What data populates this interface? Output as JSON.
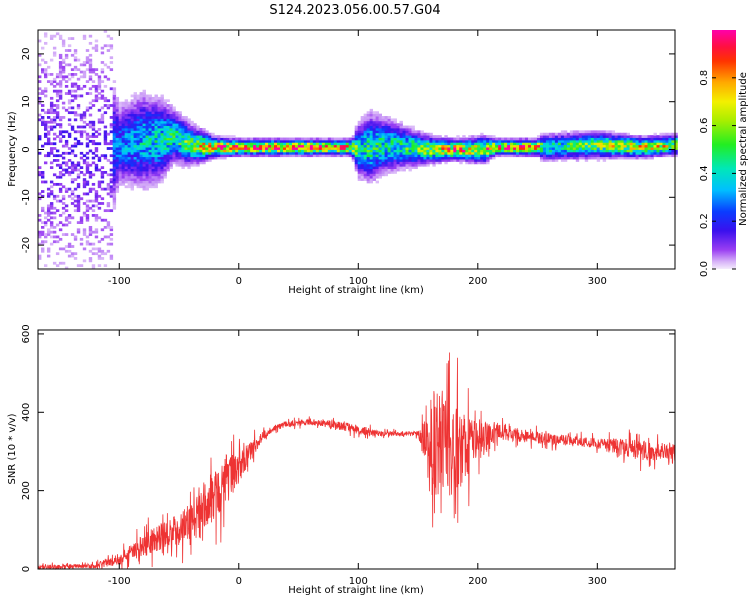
{
  "title": "S124.2023.056.00.57.G04",
  "chart_data": [
    {
      "type": "heatmap",
      "xlabel": "Height of straight line (km)",
      "ylabel": "Frequency (Hz)",
      "xlim": [
        -168,
        365
      ],
      "ylim": [
        -25,
        25
      ],
      "x_ticks": [
        -100,
        0,
        100,
        200,
        300
      ],
      "y_ticks": [
        -20,
        -10,
        0,
        10,
        20
      ],
      "colorbar": {
        "label": "Normalized spectral amplitude",
        "range": [
          0,
          1
        ],
        "ticks": [
          0.0,
          0.2,
          0.4,
          0.6,
          0.8
        ],
        "colormap": "rainbow (magenta-blue-cyan-green-yellow-red)"
      },
      "ridge": {
        "x": [
          -168,
          -125,
          -100,
          -80,
          -65,
          -55,
          -40,
          -20,
          0,
          50,
          95,
          100,
          110,
          125,
          140,
          160,
          180,
          205,
          215,
          250,
          255,
          300,
          340,
          365
        ],
        "center_freq": [
          0,
          0,
          1,
          2,
          2,
          3,
          1,
          0.5,
          0.5,
          0.5,
          0.5,
          0,
          0.5,
          1,
          0.5,
          0,
          0,
          0,
          0.5,
          0.5,
          0.5,
          1,
          0.5,
          1
        ],
        "amplitude": [
          0.05,
          0.2,
          0.3,
          0.4,
          0.45,
          0.5,
          0.6,
          0.9,
          0.95,
          0.95,
          0.8,
          0.45,
          0.5,
          0.45,
          0.5,
          0.7,
          0.9,
          0.75,
          0.9,
          0.9,
          0.45,
          0.6,
          0.8,
          0.7
        ],
        "spread_hz": [
          25,
          25,
          6,
          7,
          6,
          4,
          3,
          1.5,
          1.2,
          1.2,
          1.2,
          4,
          5,
          4,
          3,
          2,
          1.5,
          2,
          1.2,
          1.2,
          2,
          2,
          1.5,
          1.5
        ]
      }
    },
    {
      "type": "line",
      "xlabel": "Height of straight line (km)",
      "ylabel": "SNR (10 * v/v)",
      "xlim": [
        -168,
        365
      ],
      "ylim": [
        0,
        610
      ],
      "x_ticks": [
        -100,
        0,
        100,
        200,
        300
      ],
      "y_ticks": [
        0,
        200,
        400,
        600
      ],
      "color": "#ee3333",
      "envelope": {
        "x": [
          -168,
          -120,
          -100,
          -80,
          -60,
          -40,
          -30,
          -20,
          -10,
          0,
          10,
          20,
          30,
          40,
          60,
          80,
          100,
          120,
          150,
          155,
          160,
          170,
          180,
          190,
          200,
          220,
          250,
          300,
          320,
          340,
          365
        ],
        "mean": [
          5,
          8,
          25,
          60,
          90,
          120,
          160,
          190,
          230,
          260,
          300,
          340,
          360,
          370,
          375,
          370,
          355,
          345,
          345,
          330,
          320,
          310,
          300,
          320,
          330,
          350,
          335,
          320,
          310,
          300,
          300
        ],
        "jitter": [
          8,
          10,
          25,
          50,
          60,
          80,
          100,
          110,
          110,
          70,
          40,
          20,
          12,
          12,
          12,
          20,
          20,
          10,
          10,
          80,
          230,
          230,
          200,
          150,
          90,
          35,
          25,
          20,
          40,
          40,
          30
        ]
      }
    }
  ]
}
